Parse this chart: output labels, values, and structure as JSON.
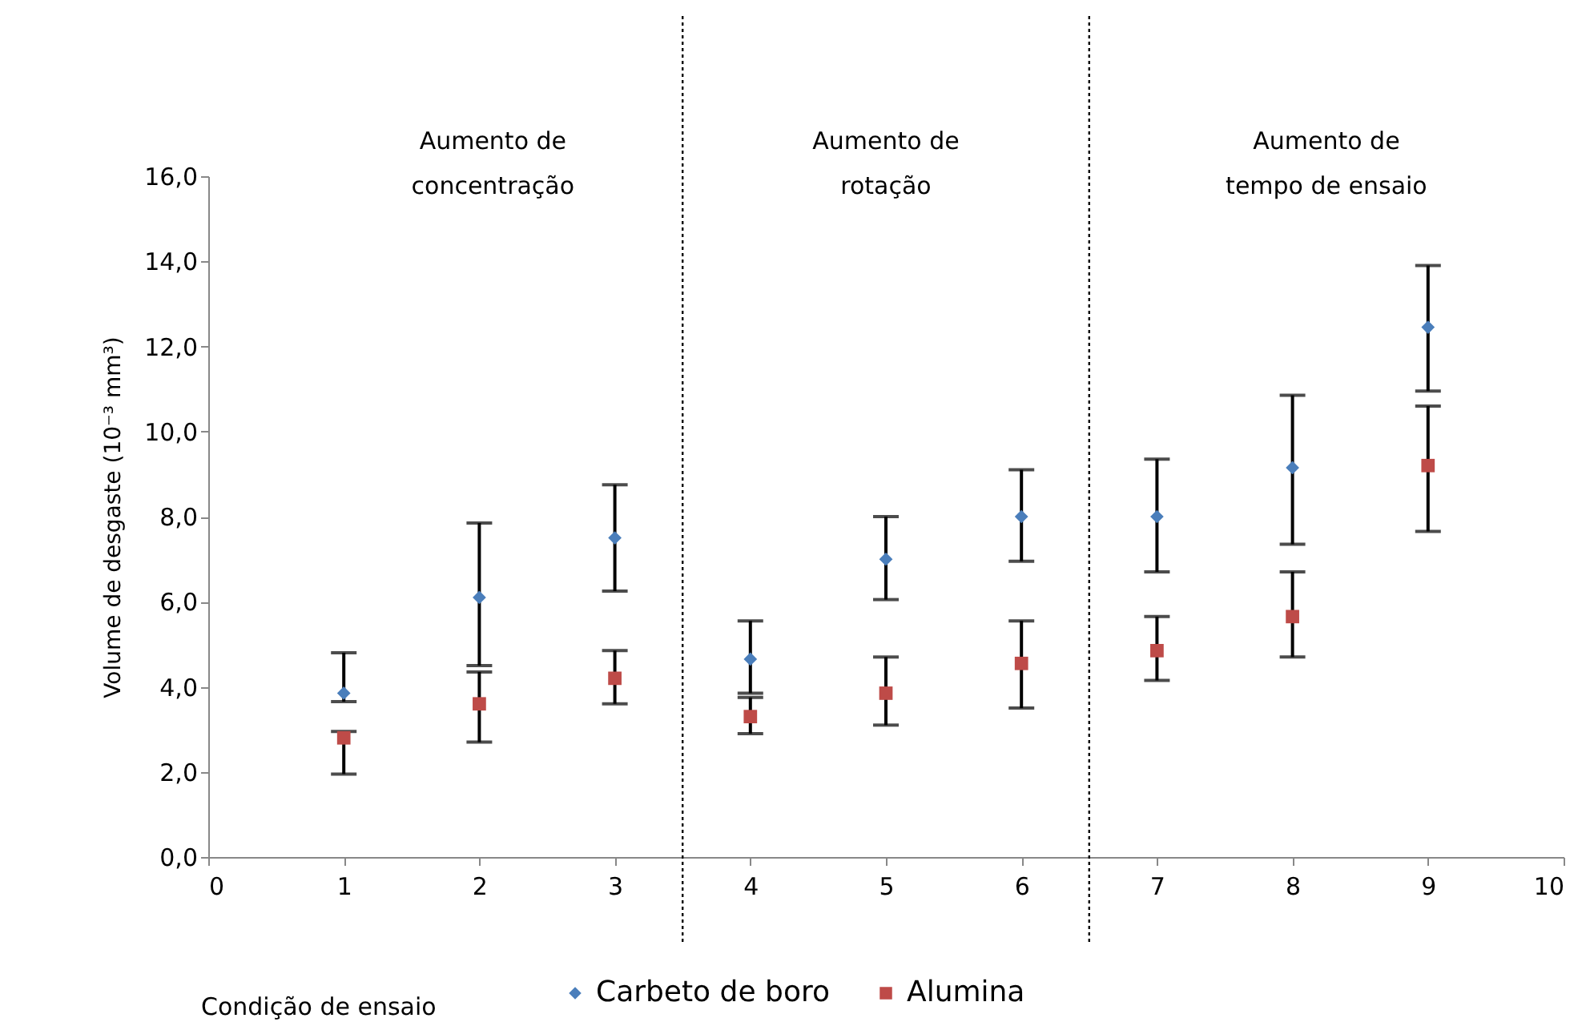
{
  "chart_data": {
    "type": "scatter",
    "xlabel": "Condição de ensaio",
    "ylabel": "Volume de desgaste (10⁻³ mm³)",
    "x": [
      1,
      2,
      3,
      4,
      5,
      6,
      7,
      8,
      9
    ],
    "series": [
      {
        "name": "Carbeto de boro",
        "color": "#4a7ebb",
        "marker": "diamond",
        "values": [
          3.85,
          6.1,
          7.5,
          4.65,
          7.0,
          8.0,
          8.0,
          9.15,
          12.45
        ],
        "errors": [
          [
            3.65,
            4.8
          ],
          [
            4.5,
            7.85
          ],
          [
            6.25,
            8.75
          ],
          [
            3.85,
            5.55
          ],
          [
            6.05,
            8.0
          ],
          [
            6.95,
            9.1
          ],
          [
            6.7,
            9.35
          ],
          [
            7.35,
            10.85
          ],
          [
            10.95,
            13.9
          ]
        ]
      },
      {
        "name": "Alumina",
        "color": "#be4b48",
        "marker": "square",
        "values": [
          2.8,
          3.6,
          4.2,
          3.3,
          3.85,
          4.55,
          4.85,
          5.65,
          9.2
        ],
        "errors": [
          [
            1.95,
            2.95
          ],
          [
            2.7,
            4.35
          ],
          [
            3.6,
            4.85
          ],
          [
            2.9,
            3.75
          ],
          [
            3.1,
            4.7
          ],
          [
            3.5,
            5.55
          ],
          [
            4.15,
            5.65
          ],
          [
            4.7,
            6.7
          ],
          [
            7.65,
            10.6
          ]
        ]
      }
    ],
    "xlim": [
      0,
      10
    ],
    "xticks": [
      0,
      1,
      2,
      3,
      4,
      5,
      6,
      7,
      8,
      9,
      10
    ],
    "ylim": [
      0,
      16
    ],
    "yticks": [
      {
        "value": 0,
        "label": "0,0"
      },
      {
        "value": 2,
        "label": "2,0"
      },
      {
        "value": 4,
        "label": "4,0"
      },
      {
        "value": 6,
        "label": "6,0"
      },
      {
        "value": 8,
        "label": "8,0"
      },
      {
        "value": 10,
        "label": "10,0"
      },
      {
        "value": 12,
        "label": "12,0"
      },
      {
        "value": 14,
        "label": "14,0"
      },
      {
        "value": 16,
        "label": "16,0"
      }
    ],
    "ref_lines": [
      {
        "axis": "x",
        "value": 3.5,
        "line_style": "dotted"
      },
      {
        "axis": "x",
        "value": 6.5,
        "line_style": "dotted"
      }
    ],
    "annotations": [
      "Aumento de\nconcentração",
      "Aumento de\nrotação",
      "Aumento de\ntempo de ensaio"
    ],
    "grid": false,
    "legend": "bottom"
  }
}
